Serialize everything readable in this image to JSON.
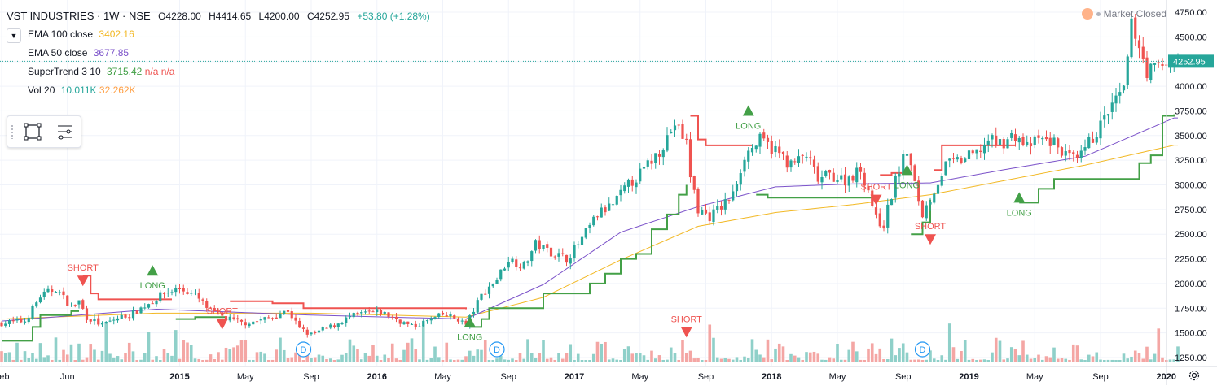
{
  "header": {
    "symbol": "VST INDUSTRIES · 1W · NSE",
    "open": "O4228.00",
    "high": "H4414.65",
    "low": "L4200.00",
    "close": "C4252.95",
    "change": "+53.80 (+1.28%)"
  },
  "indicators": [
    {
      "name": "EMA 100 close",
      "value": "3402.16",
      "color": "#f2b824"
    },
    {
      "name": "EMA 50 close",
      "value": "3677.85",
      "color": "#7b52c9"
    },
    {
      "name": "SuperTrend 3 10",
      "value": "3715.42",
      "value2": "n/a",
      "value3": "n/a",
      "color": "#43a047",
      "color2": "#ef5350"
    },
    {
      "name": "Vol 20",
      "value": "10.011K",
      "value2": "32.262K",
      "color": "#26a69a",
      "color2": "#ff9f43"
    }
  ],
  "market_status": "Market Closed",
  "last_price_label": "4252.95",
  "colors": {
    "up": "#26a69a",
    "down": "#ef5350",
    "ema100": "#f2b824",
    "ema50": "#7b52c9",
    "st_up": "#43a047",
    "st_down": "#ef5350",
    "vol_up": "#8fd0c9",
    "vol_down": "#f4a6a4",
    "grid": "#f0f3fa",
    "axis_text": "#131722"
  },
  "icons": {
    "collapse": "chevron-down-icon",
    "rect_tool": "rectangle-icon",
    "list_tool": "object-tree-icon",
    "settings": "gear-icon"
  },
  "chart_data": {
    "type": "candlestick",
    "timeframe": "1W",
    "y_ticks": [
      "4750.00",
      "4500.00",
      "4250.00",
      "4000.00",
      "3750.00",
      "3500.00",
      "3250.00",
      "3000.00",
      "2750.00",
      "2500.00",
      "2250.00",
      "2000.00",
      "1750.00",
      "1500.00",
      "1250.00"
    ],
    "ylim": [
      1200,
      4800
    ],
    "x_ticks": [
      "Feb",
      "Jun",
      "2015",
      "May",
      "Sep",
      "2016",
      "May",
      "Sep",
      "2017",
      "May",
      "Sep",
      "2018",
      "May",
      "Sep",
      "2019",
      "May",
      "Sep",
      "2020"
    ],
    "x_tick_index": [
      0,
      17,
      46,
      63,
      80,
      97,
      114,
      131,
      148,
      165,
      182,
      199,
      216,
      233,
      250,
      267,
      284,
      301
    ],
    "num_bars": 305,
    "anchors": [
      [
        0,
        1600
      ],
      [
        6,
        1620
      ],
      [
        10,
        1870
      ],
      [
        14,
        1950
      ],
      [
        18,
        1760
      ],
      [
        20,
        1820
      ],
      [
        22,
        1660
      ],
      [
        26,
        1580
      ],
      [
        30,
        1650
      ],
      [
        34,
        1700
      ],
      [
        38,
        1800
      ],
      [
        42,
        1900
      ],
      [
        46,
        1950
      ],
      [
        50,
        1880
      ],
      [
        54,
        1720
      ],
      [
        58,
        1650
      ],
      [
        62,
        1600
      ],
      [
        66,
        1620
      ],
      [
        70,
        1660
      ],
      [
        74,
        1730
      ],
      [
        77,
        1540
      ],
      [
        80,
        1480
      ],
      [
        85,
        1560
      ],
      [
        90,
        1660
      ],
      [
        94,
        1700
      ],
      [
        98,
        1710
      ],
      [
        102,
        1640
      ],
      [
        106,
        1560
      ],
      [
        110,
        1620
      ],
      [
        114,
        1680
      ],
      [
        118,
        1640
      ],
      [
        120,
        1580
      ],
      [
        124,
        1880
      ],
      [
        128,
        2050
      ],
      [
        131,
        2250
      ],
      [
        135,
        2180
      ],
      [
        138,
        2400
      ],
      [
        142,
        2320
      ],
      [
        146,
        2250
      ],
      [
        150,
        2450
      ],
      [
        154,
        2700
      ],
      [
        158,
        2800
      ],
      [
        162,
        3000
      ],
      [
        166,
        3150
      ],
      [
        170,
        3350
      ],
      [
        174,
        3620
      ],
      [
        177,
        3420
      ],
      [
        178,
        3100
      ],
      [
        180,
        2750
      ],
      [
        183,
        2680
      ],
      [
        186,
        2780
      ],
      [
        189,
        2900
      ],
      [
        192,
        3300
      ],
      [
        196,
        3450
      ],
      [
        200,
        3350
      ],
      [
        204,
        3200
      ],
      [
        208,
        3300
      ],
      [
        211,
        3050
      ],
      [
        214,
        3100
      ],
      [
        218,
        3050
      ],
      [
        222,
        3150
      ],
      [
        224,
        2950
      ],
      [
        226,
        2650
      ],
      [
        228,
        2600
      ],
      [
        231,
        3050
      ],
      [
        234,
        3350
      ],
      [
        236,
        3000
      ],
      [
        238,
        2700
      ],
      [
        241,
        2950
      ],
      [
        244,
        3200
      ],
      [
        248,
        3250
      ],
      [
        252,
        3320
      ],
      [
        255,
        3450
      ],
      [
        258,
        3420
      ],
      [
        262,
        3500
      ],
      [
        265,
        3380
      ],
      [
        268,
        3460
      ],
      [
        272,
        3430
      ],
      [
        275,
        3300
      ],
      [
        278,
        3230
      ],
      [
        281,
        3420
      ],
      [
        284,
        3600
      ],
      [
        287,
        3800
      ],
      [
        290,
        3950
      ],
      [
        292,
        4600
      ],
      [
        293,
        4550
      ],
      [
        296,
        4150
      ],
      [
        299,
        4200
      ],
      [
        301,
        4220
      ],
      [
        303,
        4253
      ]
    ],
    "ema100_anchors": [
      [
        0,
        1640
      ],
      [
        40,
        1700
      ],
      [
        80,
        1700
      ],
      [
        120,
        1660
      ],
      [
        140,
        1860
      ],
      [
        160,
        2240
      ],
      [
        180,
        2580
      ],
      [
        200,
        2720
      ],
      [
        220,
        2800
      ],
      [
        240,
        2900
      ],
      [
        260,
        3050
      ],
      [
        280,
        3200
      ],
      [
        303,
        3402
      ]
    ],
    "ema50_anchors": [
      [
        0,
        1620
      ],
      [
        40,
        1740
      ],
      [
        80,
        1680
      ],
      [
        120,
        1640
      ],
      [
        140,
        1990
      ],
      [
        160,
        2520
      ],
      [
        180,
        2780
      ],
      [
        200,
        2980
      ],
      [
        220,
        3010
      ],
      [
        240,
        3020
      ],
      [
        260,
        3160
      ],
      [
        280,
        3290
      ],
      [
        303,
        3678
      ]
    ],
    "supertrend": [
      {
        "trend": "up",
        "points": [
          [
            0,
            1420
          ],
          [
            7,
            1420
          ],
          [
            8,
            1560
          ],
          [
            10,
            1680
          ],
          [
            18,
            1720
          ],
          [
            20,
            1720
          ]
        ]
      },
      {
        "trend": "down",
        "points": [
          [
            21,
            2080
          ],
          [
            23,
            1900
          ],
          [
            25,
            1840
          ],
          [
            40,
            1840
          ],
          [
            44,
            1840
          ]
        ]
      },
      {
        "trend": "up",
        "points": [
          [
            45,
            1640
          ],
          [
            50,
            1660
          ],
          [
            58,
            1660
          ]
        ]
      },
      {
        "trend": "down",
        "points": [
          [
            59,
            1820
          ],
          [
            70,
            1800
          ],
          [
            78,
            1750
          ],
          [
            120,
            1740
          ]
        ]
      },
      {
        "trend": "up",
        "points": [
          [
            121,
            1560
          ],
          [
            124,
            1640
          ],
          [
            126,
            1750
          ],
          [
            140,
            1900
          ],
          [
            148,
            1900
          ],
          [
            152,
            2000
          ],
          [
            156,
            2100
          ],
          [
            160,
            2250
          ],
          [
            164,
            2300
          ],
          [
            168,
            2550
          ],
          [
            172,
            2700
          ],
          [
            175,
            2900
          ],
          [
            177,
            3000
          ]
        ]
      },
      {
        "trend": "down",
        "points": [
          [
            178,
            3700
          ],
          [
            180,
            3460
          ],
          [
            182,
            3400
          ],
          [
            194,
            3400
          ]
        ]
      },
      {
        "trend": "up",
        "points": [
          [
            195,
            2900
          ],
          [
            198,
            2870
          ],
          [
            226,
            2870
          ]
        ]
      },
      {
        "trend": "down",
        "points": [
          [
            227,
            3100
          ],
          [
            230,
            3120
          ],
          [
            234,
            3120
          ]
        ]
      },
      {
        "trend": "up",
        "points": [
          [
            235,
            2500
          ],
          [
            238,
            2620
          ],
          [
            240,
            2850
          ]
        ]
      },
      {
        "trend": "down",
        "points": [
          [
            241,
            3150
          ],
          [
            243,
            3400
          ],
          [
            262,
            3400
          ]
        ]
      },
      {
        "trend": "up",
        "points": [
          [
            263,
            2820
          ],
          [
            268,
            2960
          ],
          [
            272,
            3060
          ],
          [
            290,
            3060
          ],
          [
            294,
            3220
          ],
          [
            297,
            3300
          ],
          [
            300,
            3700
          ],
          [
            303,
            3715
          ]
        ]
      }
    ],
    "signals": [
      {
        "type": "SHORT",
        "bar": 21
      },
      {
        "type": "LONG",
        "bar": 39
      },
      {
        "type": "SHORT",
        "bar": 57
      },
      {
        "type": "LONG",
        "bar": 121
      },
      {
        "type": "SHORT",
        "bar": 177
      },
      {
        "type": "LONG",
        "bar": 193
      },
      {
        "type": "SHORT",
        "bar": 226
      },
      {
        "type": "LONG",
        "bar": 234
      },
      {
        "type": "SHORT",
        "bar": 240
      },
      {
        "type": "LONG",
        "bar": 263
      }
    ],
    "dividend_markers": [
      {
        "label": "D",
        "bar": 78
      },
      {
        "label": "D",
        "bar": 128
      },
      {
        "label": "D",
        "bar": 238
      }
    ]
  }
}
